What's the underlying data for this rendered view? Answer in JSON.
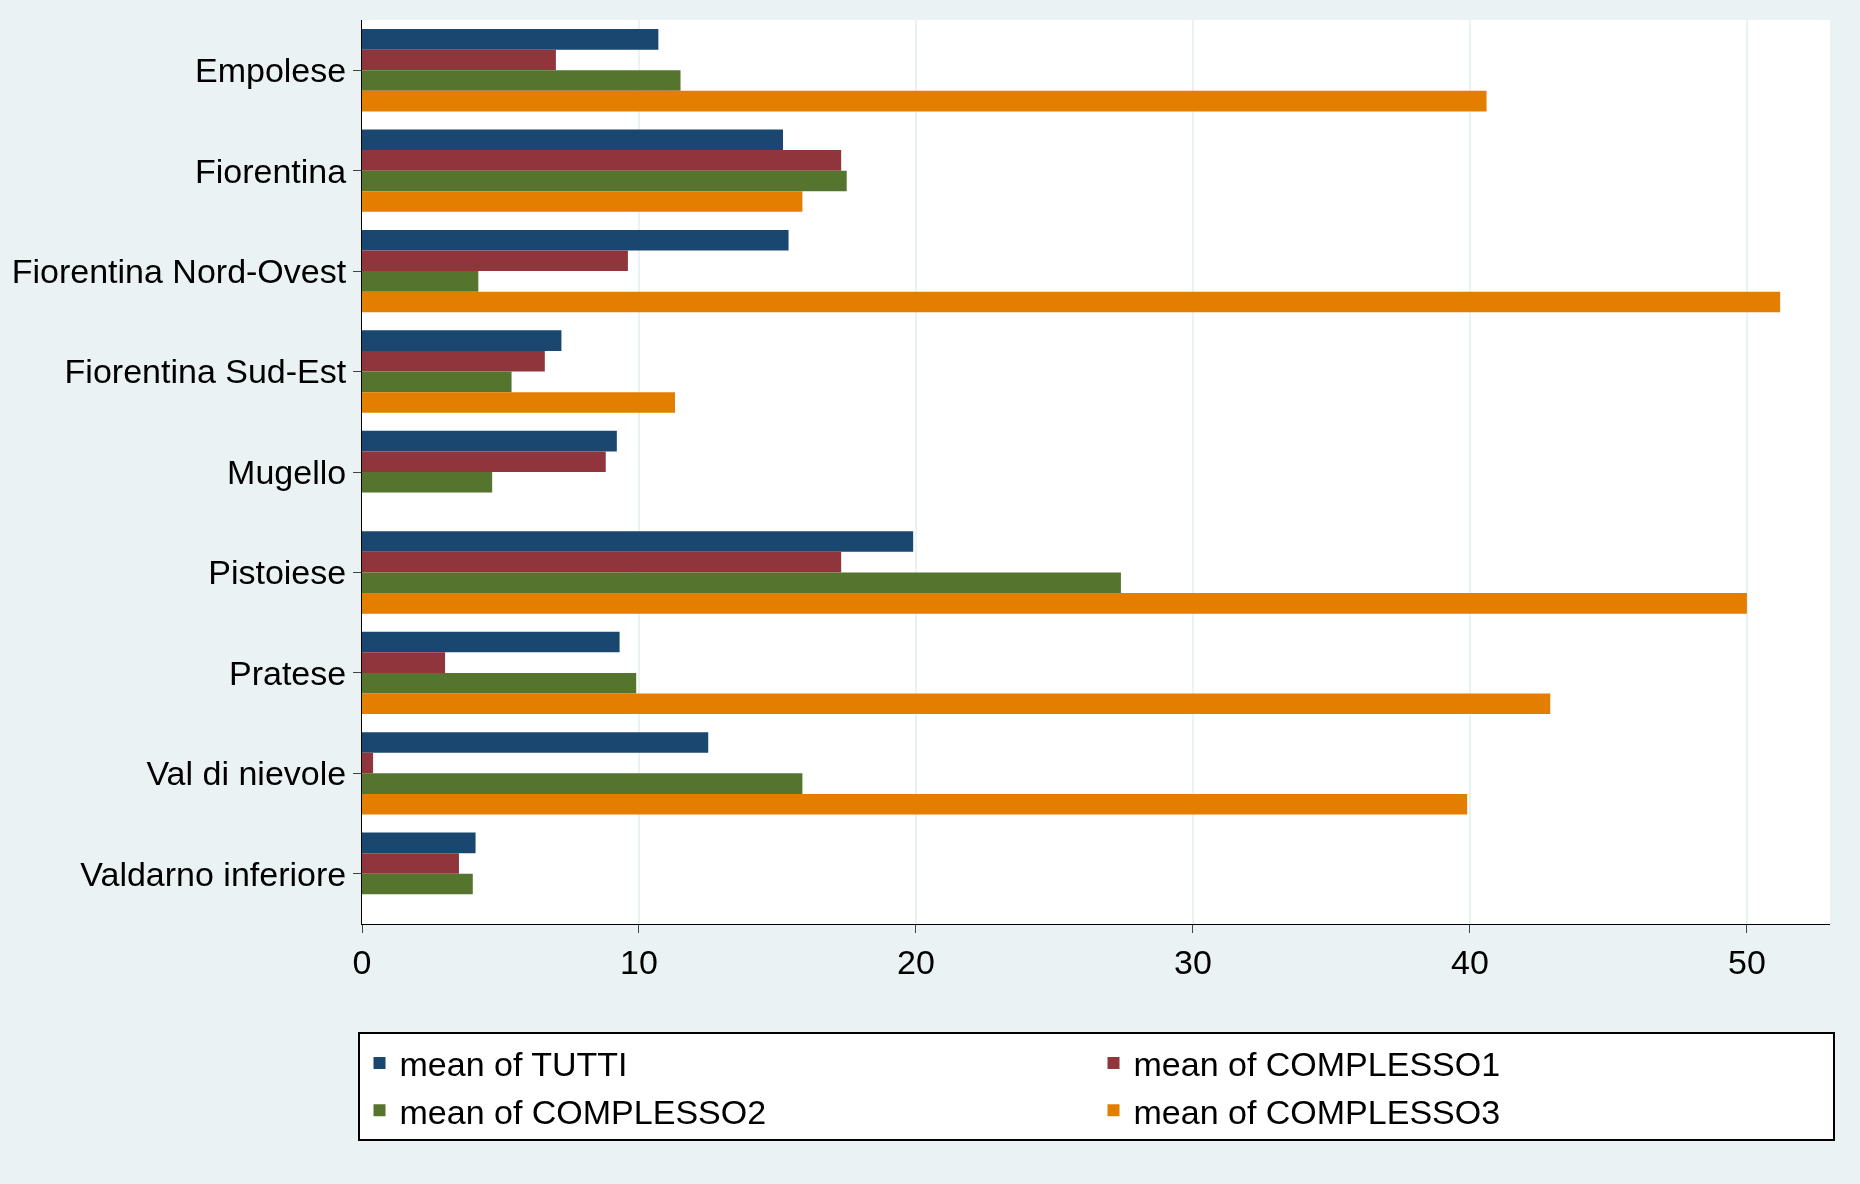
{
  "chart_data": {
    "type": "bar",
    "orientation": "horizontal",
    "categories": [
      "Empolese",
      "Fiorentina",
      "Fiorentina Nord-Ovest",
      "Fiorentina Sud-Est",
      "Mugello",
      "Pistoiese",
      "Pratese",
      "Val di nievole",
      "Valdarno inferiore"
    ],
    "series": [
      {
        "name": "mean of TUTTI",
        "color": "#1a476f",
        "values": [
          10.7,
          15.2,
          15.4,
          7.2,
          9.2,
          19.9,
          9.3,
          12.5,
          4.1
        ]
      },
      {
        "name": "mean of COMPLESSO1",
        "color": "#90353b",
        "values": [
          7.0,
          17.3,
          9.6,
          6.6,
          8.8,
          17.3,
          3.0,
          0.4,
          3.5
        ]
      },
      {
        "name": "mean of COMPLESSO2",
        "color": "#55752f",
        "values": [
          11.5,
          17.5,
          4.2,
          5.4,
          4.7,
          27.4,
          9.9,
          15.9,
          4.0
        ]
      },
      {
        "name": "mean of COMPLESSO3",
        "color": "#e37e00",
        "values": [
          40.6,
          15.9,
          51.2,
          11.3,
          null,
          50.0,
          42.9,
          39.9,
          null
        ]
      }
    ],
    "xlim": [
      0,
      53
    ],
    "xticks": [
      0,
      10,
      20,
      30,
      40,
      50
    ],
    "grid": "x",
    "legend": "bottom"
  }
}
